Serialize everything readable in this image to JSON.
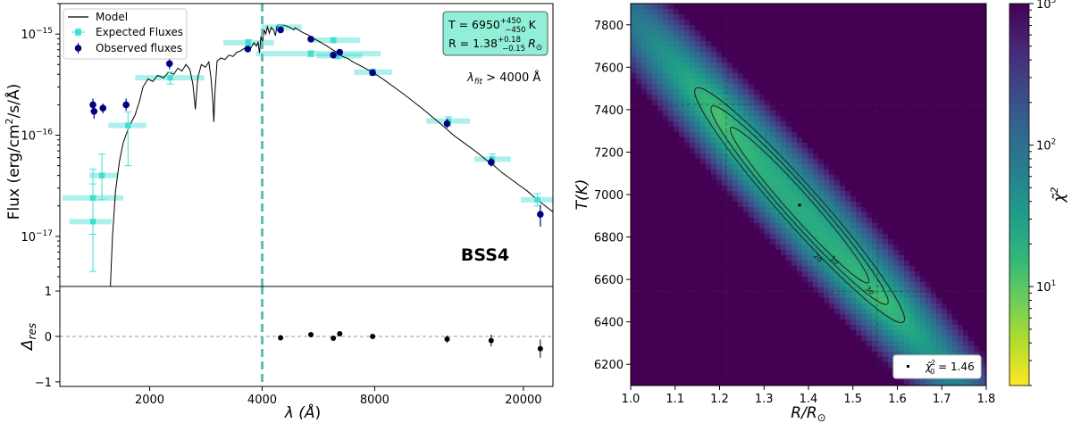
{
  "chart_data": [
    {
      "type": "line",
      "panel": "sed",
      "ylabel": "Flux (erg/cm²/s/Å)",
      "ylabel_parts": {
        "pre": "Flux (erg/cm",
        "sup": "2",
        "post": "/s/Å)"
      },
      "yscale": "log",
      "ylim": [
        3.2e-18,
        2e-15
      ],
      "yticks": [
        {
          "value": 1e-15,
          "base": "10",
          "exp": "−15"
        },
        {
          "value": 1e-16,
          "base": "10",
          "exp": "−16"
        },
        {
          "value": 1e-17,
          "base": "10",
          "exp": "−17"
        }
      ],
      "xscale": "log",
      "xlim": [
        1150,
        24000
      ],
      "xticks": [
        {
          "value": 2000,
          "label": "2000"
        },
        {
          "value": 4000,
          "label": "4000"
        },
        {
          "value": 8000,
          "label": "8000"
        },
        {
          "value": 20000,
          "label": "20000"
        }
      ],
      "legend": {
        "position": "top-left",
        "model": "Model",
        "expected": "Expected Fluxes",
        "observed": "Observed fluxes"
      },
      "params": {
        "t_line": "T = 6950",
        "t_sup": "+450",
        "t_sub": "−450",
        "t_unit": "K",
        "r_line": "R = 1.38",
        "r_sup": "+0.18",
        "r_sub": "−0.15",
        "r_unit": "R",
        "r_sun": "⊙"
      },
      "fit_note": {
        "pre": "λ",
        "sub": "fit",
        "post": " > 4000 Å"
      },
      "object_label": "BSS4",
      "cutoff_wavelength": 4000,
      "model": [
        [
          1570,
          3.2e-18
        ],
        [
          1590,
          1e-17
        ],
        [
          1620,
          2.8e-17
        ],
        [
          1660,
          5.5e-17
        ],
        [
          1700,
          8.5e-17
        ],
        [
          1760,
          1.2e-16
        ],
        [
          1830,
          1.6e-16
        ],
        [
          1880,
          2.2e-16
        ],
        [
          1920,
          3e-16
        ],
        [
          1980,
          3.6e-16
        ],
        [
          2040,
          3.4e-16
        ],
        [
          2100,
          3.9e-16
        ],
        [
          2180,
          3.7e-16
        ],
        [
          2250,
          4.2e-16
        ],
        [
          2320,
          4e-16
        ],
        [
          2380,
          4.6e-16
        ],
        [
          2440,
          4.3e-16
        ],
        [
          2500,
          5e-16
        ],
        [
          2560,
          4.5e-16
        ],
        [
          2610,
          3.2e-16
        ],
        [
          2650,
          1.8e-16
        ],
        [
          2690,
          3.7e-16
        ],
        [
          2750,
          5e-16
        ],
        [
          2820,
          4.7e-16
        ],
        [
          2880,
          5.3e-16
        ],
        [
          2920,
          3.6e-16
        ],
        [
          2950,
          2.2e-16
        ],
        [
          2970,
          1.35e-16
        ],
        [
          2990,
          2.6e-16
        ],
        [
          3030,
          5.4e-16
        ],
        [
          3100,
          5.8e-16
        ],
        [
          3180,
          5.6e-16
        ],
        [
          3260,
          6.2e-16
        ],
        [
          3340,
          6e-16
        ],
        [
          3420,
          6.6e-16
        ],
        [
          3500,
          6.8e-16
        ],
        [
          3580,
          7.2e-16
        ],
        [
          3660,
          7.5e-16
        ],
        [
          3730,
          7.3e-16
        ],
        [
          3800,
          8.2e-16
        ],
        [
          3860,
          7.6e-16
        ],
        [
          3900,
          8.3e-16
        ],
        [
          3935,
          6.5e-16
        ],
        [
          3970,
          9.5e-16
        ],
        [
          4010,
          8.4e-16
        ],
        [
          4050,
          1.1e-15
        ],
        [
          4090,
          1e-15
        ],
        [
          4130,
          1.18e-15
        ],
        [
          4180,
          1.02e-15
        ],
        [
          4230,
          1.16e-15
        ],
        [
          4300,
          1.08e-15
        ],
        [
          4340,
          9.6e-16
        ],
        [
          4380,
          1.2e-15
        ],
        [
          4450,
          1.18e-15
        ],
        [
          4550,
          1.22e-15
        ],
        [
          4650,
          1.2e-15
        ],
        [
          4750,
          1.16e-15
        ],
        [
          4860,
          1.1e-15
        ],
        [
          4900,
          1.15e-15
        ],
        [
          5000,
          1.1e-15
        ],
        [
          5150,
          1.03e-15
        ],
        [
          5300,
          9.8e-16
        ],
        [
          5500,
          9e-16
        ],
        [
          5700,
          8.4e-16
        ],
        [
          5900,
          7.8e-16
        ],
        [
          6100,
          7.2e-16
        ],
        [
          6300,
          6.7e-16
        ],
        [
          6563,
          6e-16
        ],
        [
          6800,
          5.7e-16
        ],
        [
          7000,
          5.3e-16
        ],
        [
          7300,
          4.9e-16
        ],
        [
          7700,
          4.4e-16
        ],
        [
          8100,
          3.95e-16
        ],
        [
          8500,
          3.5e-16
        ],
        [
          9000,
          3e-16
        ],
        [
          9500,
          2.6e-16
        ],
        [
          10000,
          2.25e-16
        ],
        [
          10500,
          1.95e-16
        ],
        [
          11000,
          1.7e-16
        ],
        [
          11700,
          1.4e-16
        ],
        [
          12300,
          1.2e-16
        ],
        [
          13000,
          1e-16
        ],
        [
          14000,
          8.2e-17
        ],
        [
          15000,
          6.8e-17
        ],
        [
          16000,
          5.6e-17
        ],
        [
          16700,
          5e-17
        ],
        [
          17500,
          4.3e-17
        ],
        [
          18500,
          3.7e-17
        ],
        [
          19500,
          3.2e-17
        ],
        [
          20500,
          2.8e-17
        ],
        [
          21500,
          2.4e-17
        ],
        [
          22500,
          2.1e-17
        ],
        [
          23500,
          1.85e-17
        ],
        [
          24000,
          1.75e-17
        ]
      ],
      "expected": [
        {
          "x": 1410,
          "y": 2.4e-17,
          "xerr": [
            1170,
            1700
          ],
          "yerr": [
            1.05e-17,
            4.6e-17
          ]
        },
        {
          "x": 1410,
          "y": 1.4e-17,
          "xerr": [
            1220,
            1580
          ],
          "yerr": [
            4.5e-18,
            3.3e-17
          ]
        },
        {
          "x": 1490,
          "y": 4e-17,
          "xerr": [
            1380,
            1640
          ],
          "yerr": [
            2.3e-17,
            6.5e-17
          ]
        },
        {
          "x": 1750,
          "y": 1.25e-16,
          "xerr": [
            1550,
            1960
          ],
          "yerr": [
            5e-17,
            1.7e-16
          ]
        },
        {
          "x": 2270,
          "y": 3.7e-16,
          "xerr": [
            1830,
            2800
          ],
          "yerr": [
            3.2e-16,
            4.2e-16
          ]
        },
        {
          "x": 3670,
          "y": 8.2e-16,
          "xerr": [
            3150,
            4300
          ],
          "yerr": [
            7.6e-16,
            8.8e-16
          ]
        },
        {
          "x": 4480,
          "y": 1.17e-15,
          "xerr": [
            3980,
            5100
          ],
          "yerr": [
            1.1e-15,
            1.24e-15
          ]
        },
        {
          "x": 5400,
          "y": 6.4e-16,
          "xerr": [
            3850,
            8300
          ],
          "yerr": [
            6e-16,
            6.8e-16
          ]
        },
        {
          "x": 6200,
          "y": 8.7e-16,
          "xerr": [
            5400,
            7300
          ],
          "yerr": [
            8.2e-16,
            9.2e-16
          ]
        },
        {
          "x": 6350,
          "y": 6.1e-16,
          "xerr": [
            5600,
            7400
          ],
          "yerr": [
            5.7e-16,
            6.5e-16
          ]
        },
        {
          "x": 7900,
          "y": 4.2e-16,
          "xerr": [
            7050,
            8900
          ],
          "yerr": [
            3.9e-16,
            4.5e-16
          ]
        },
        {
          "x": 12600,
          "y": 1.38e-16,
          "xerr": [
            11000,
            14400
          ],
          "yerr": [
            1.25e-16,
            1.52e-16
          ]
        },
        {
          "x": 16500,
          "y": 5.8e-17,
          "xerr": [
            14800,
            18500
          ],
          "yerr": [
            5.2e-17,
            6.5e-17
          ]
        },
        {
          "x": 21800,
          "y": 2.3e-17,
          "xerr": [
            19700,
            24000
          ],
          "yerr": [
            2e-17,
            2.65e-17
          ]
        }
      ],
      "observed": [
        {
          "x": 1410,
          "y": 2e-16,
          "yerr": [
            1.75e-16,
            2.3e-16
          ]
        },
        {
          "x": 1420,
          "y": 1.72e-16,
          "yerr": [
            1.45e-16,
            2e-16
          ]
        },
        {
          "x": 1500,
          "y": 1.85e-16,
          "yerr": [
            1.65e-16,
            2.05e-16
          ]
        },
        {
          "x": 1730,
          "y": 2e-16,
          "yerr": [
            1.75e-16,
            2.3e-16
          ]
        },
        {
          "x": 2260,
          "y": 5.1e-16,
          "yerr": [
            4.5e-16,
            5.8e-16
          ]
        },
        {
          "x": 3660,
          "y": 7.1e-16,
          "yerr": [
            6.7e-16,
            7.5e-16
          ]
        },
        {
          "x": 4480,
          "y": 1.1e-15,
          "yerr": [
            1.04e-15,
            1.16e-15
          ]
        },
        {
          "x": 5400,
          "y": 8.9e-16,
          "yerr": [
            8.5e-16,
            9.3e-16
          ]
        },
        {
          "x": 6200,
          "y": 6.2e-16,
          "yerr": [
            5.8e-16,
            6.6e-16
          ]
        },
        {
          "x": 6450,
          "y": 6.6e-16,
          "yerr": [
            6.2e-16,
            7e-16
          ]
        },
        {
          "x": 7900,
          "y": 4.15e-16,
          "yerr": [
            3.9e-16,
            4.4e-16
          ]
        },
        {
          "x": 12500,
          "y": 1.3e-16,
          "yerr": [
            1.18e-16,
            1.45e-16
          ]
        },
        {
          "x": 16400,
          "y": 5.4e-17,
          "yerr": [
            4.9e-17,
            6e-17
          ]
        },
        {
          "x": 22200,
          "y": 1.65e-17,
          "yerr": [
            1.25e-17,
            2.05e-17
          ]
        }
      ]
    },
    {
      "type": "scatter",
      "panel": "residuals",
      "ylabel": {
        "pre": "Δ",
        "sub": "res"
      },
      "xlabel": {
        "pre": "λ (",
        "unit": "Å",
        "post": ")"
      },
      "ylim": [
        -1.1,
        1.1
      ],
      "yticks": [
        {
          "value": 1,
          "label": "1"
        },
        {
          "value": 0,
          "label": "0"
        },
        {
          "value": -1,
          "label": "−1"
        }
      ],
      "points": [
        {
          "x": 4480,
          "y": -0.03,
          "yerr": 0.04
        },
        {
          "x": 5400,
          "y": 0.04,
          "yerr": 0.04
        },
        {
          "x": 6200,
          "y": -0.04,
          "yerr": 0.05
        },
        {
          "x": 6450,
          "y": 0.06,
          "yerr": 0.05
        },
        {
          "x": 7900,
          "y": 0.0,
          "yerr": 0.05
        },
        {
          "x": 12500,
          "y": -0.06,
          "yerr": 0.08
        },
        {
          "x": 16400,
          "y": -0.09,
          "yerr": 0.13
        },
        {
          "x": 22200,
          "y": -0.27,
          "yerr": 0.2
        }
      ]
    },
    {
      "type": "heatmap",
      "panel": "chi2",
      "xlabel": {
        "pre": "R",
        "post": "/R",
        "sun": "⊙"
      },
      "ylabel": "T(K)",
      "xlim": [
        1.0,
        1.8
      ],
      "ylim": [
        6100,
        7900
      ],
      "xticks": [
        "1.0",
        "1.1",
        "1.2",
        "1.3",
        "1.4",
        "1.5",
        "1.6",
        "1.7",
        "1.8"
      ],
      "yticks": [
        "6200",
        "6400",
        "6600",
        "6800",
        "7000",
        "7200",
        "7400",
        "7600",
        "7800"
      ],
      "best_fit": {
        "R": 1.38,
        "T": 6950
      },
      "dashed_R": [
        1.215,
        1.555
      ],
      "dashed_T": [
        6545,
        7425
      ],
      "contour_labels": [
        "1σ",
        "2σ",
        "3σ"
      ],
      "contour_label_pos": [
        [
          1.456,
          6682
        ],
        [
          1.418,
          6694
        ],
        [
          1.535,
          6540
        ]
      ],
      "legend": {
        "pre": "χ̃",
        "sub": "0",
        "sup": "2",
        "post": " = 1.46"
      },
      "colorbar": {
        "label": {
          "pre": "χ̃",
          "sup": "2"
        },
        "scale": "log",
        "range": [
          2,
          1000
        ],
        "ticks": [
          {
            "value": 10,
            "base": "10",
            "exp": "1"
          },
          {
            "value": 100,
            "base": "10",
            "exp": "2"
          },
          {
            "value": 1000,
            "base": "10",
            "exp": "3"
          }
        ]
      },
      "colors": [
        "#fde725",
        "#b5de2b",
        "#6ece58",
        "#35b779",
        "#1f9e89",
        "#26828e",
        "#31688e",
        "#3e4989",
        "#482878",
        "#440154"
      ]
    }
  ]
}
